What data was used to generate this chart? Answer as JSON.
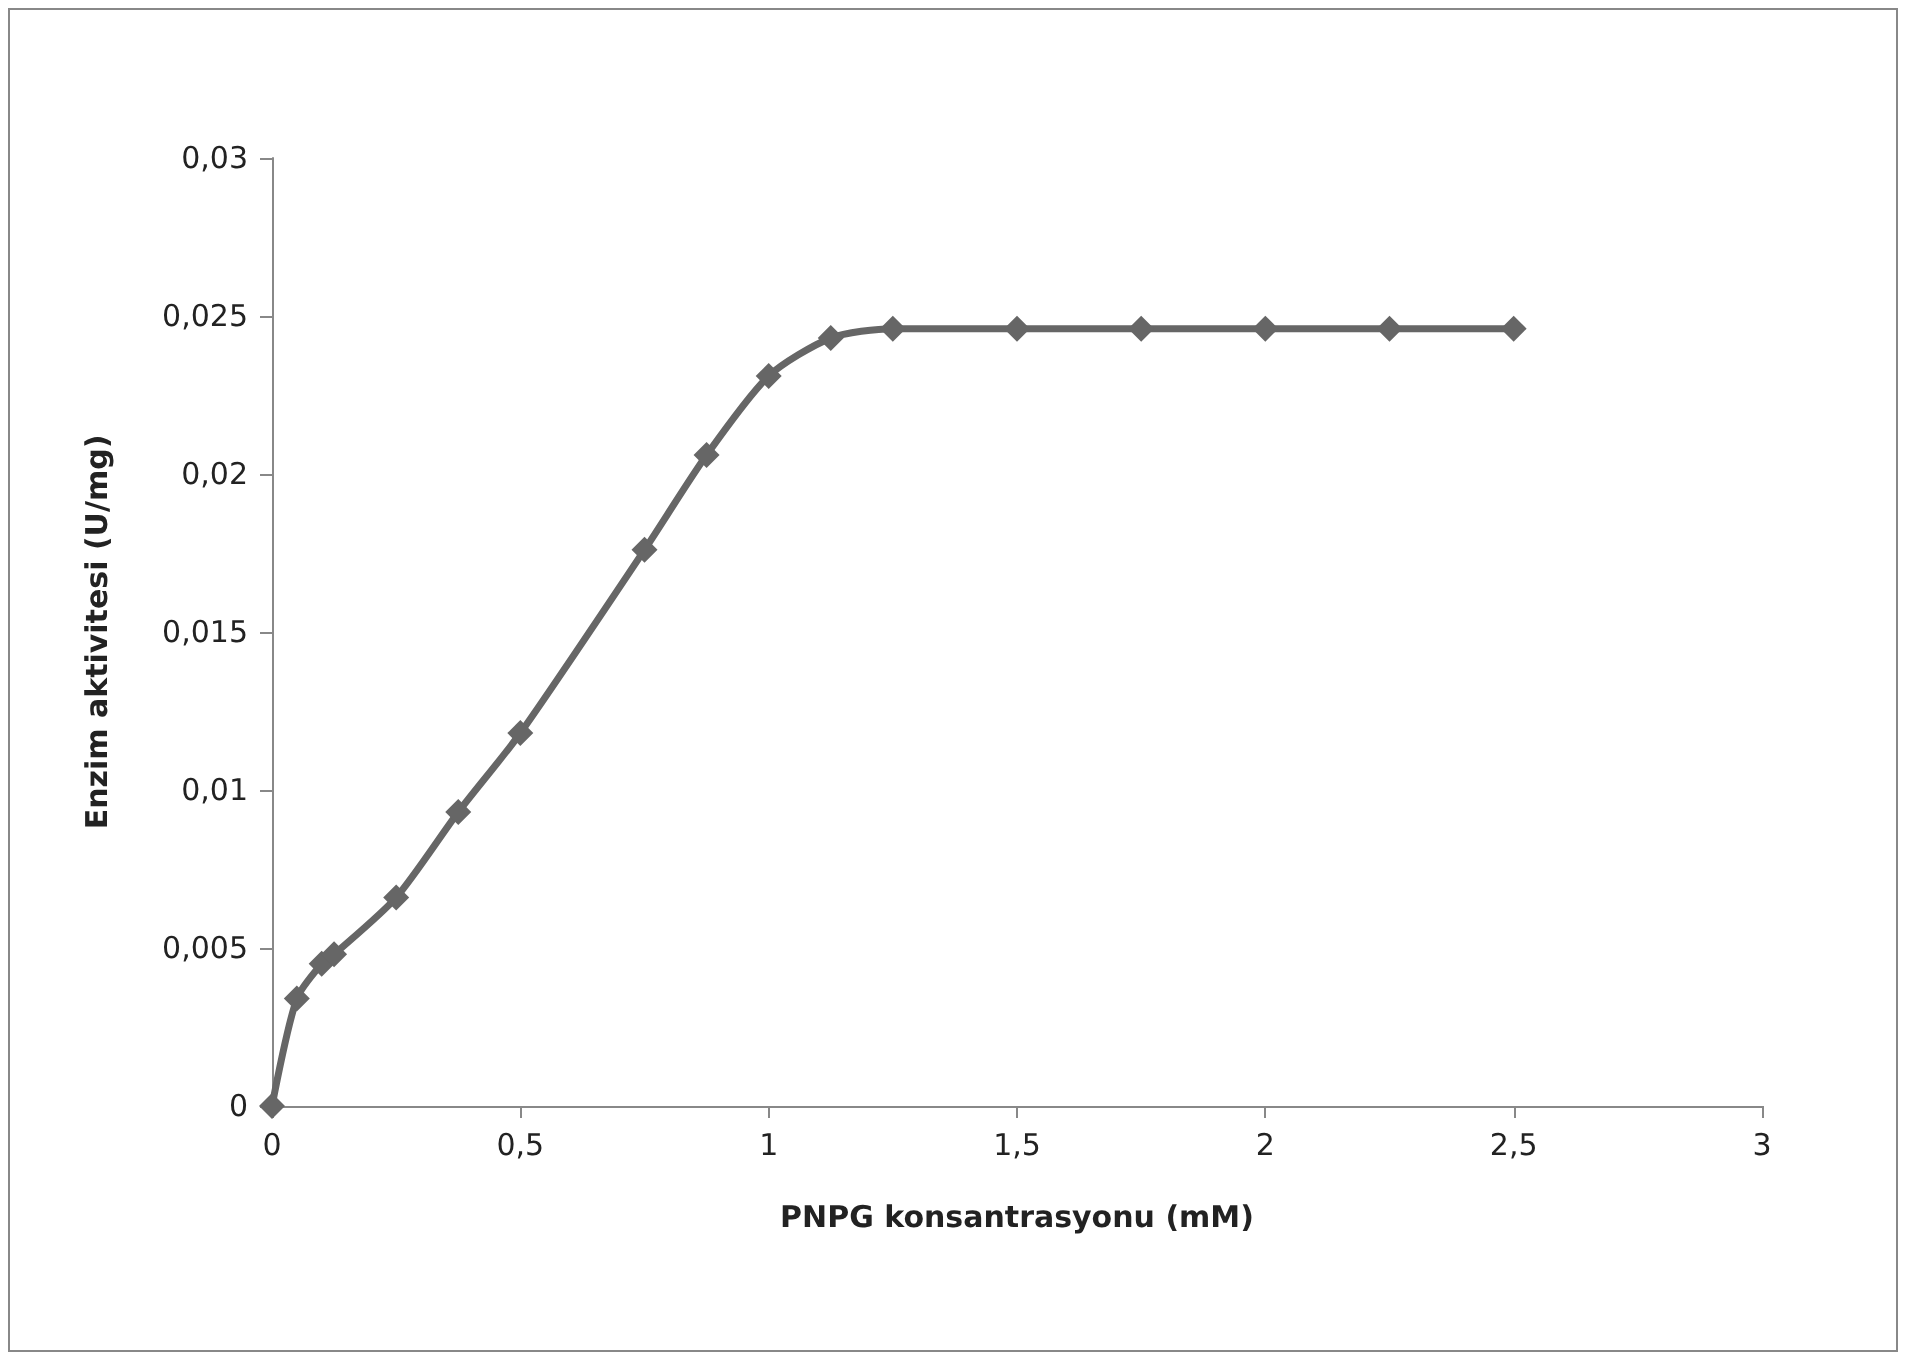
{
  "chart_data": {
    "type": "line",
    "xlabel": "PNPG konsantrasyonu (mM)",
    "ylabel": "Enzim aktivitesi (U/mg)",
    "x": [
      0,
      0.05,
      0.1,
      0.125,
      0.25,
      0.375,
      0.5,
      0.75,
      0.875,
      1,
      1.125,
      1.25,
      1.5,
      1.75,
      2,
      2.25,
      2.5
    ],
    "series": [
      {
        "color": "#666666",
        "values": [
          0,
          0.0034,
          0.0045,
          0.0048,
          0.0066,
          0.0093,
          0.0118,
          0.0176,
          0.0206,
          0.0231,
          0.0243,
          0.0246,
          0.0246,
          0.0246,
          0.0246,
          0.0246,
          0.0246
        ]
      }
    ],
    "xlim": [
      0,
      3
    ],
    "xticks": [
      0,
      {
        "value": 0.5,
        "label": "0,5"
      },
      1,
      {
        "value": 1.5,
        "label": "1,5"
      },
      2,
      {
        "value": 2.5,
        "label": "2,5"
      },
      3
    ],
    "ylim": [
      0,
      0.03
    ],
    "yticks": [
      0,
      {
        "value": 0.005,
        "label": "0,005"
      },
      {
        "value": 0.01,
        "label": "0,01"
      },
      {
        "value": 0.015,
        "label": "0,015"
      },
      {
        "value": 0.02,
        "label": "0,02"
      },
      {
        "value": 0.025,
        "label": "0,025"
      },
      {
        "value": 0.03,
        "label": "0,03"
      }
    ],
    "marker": "diamond",
    "line_style": "solid"
  }
}
